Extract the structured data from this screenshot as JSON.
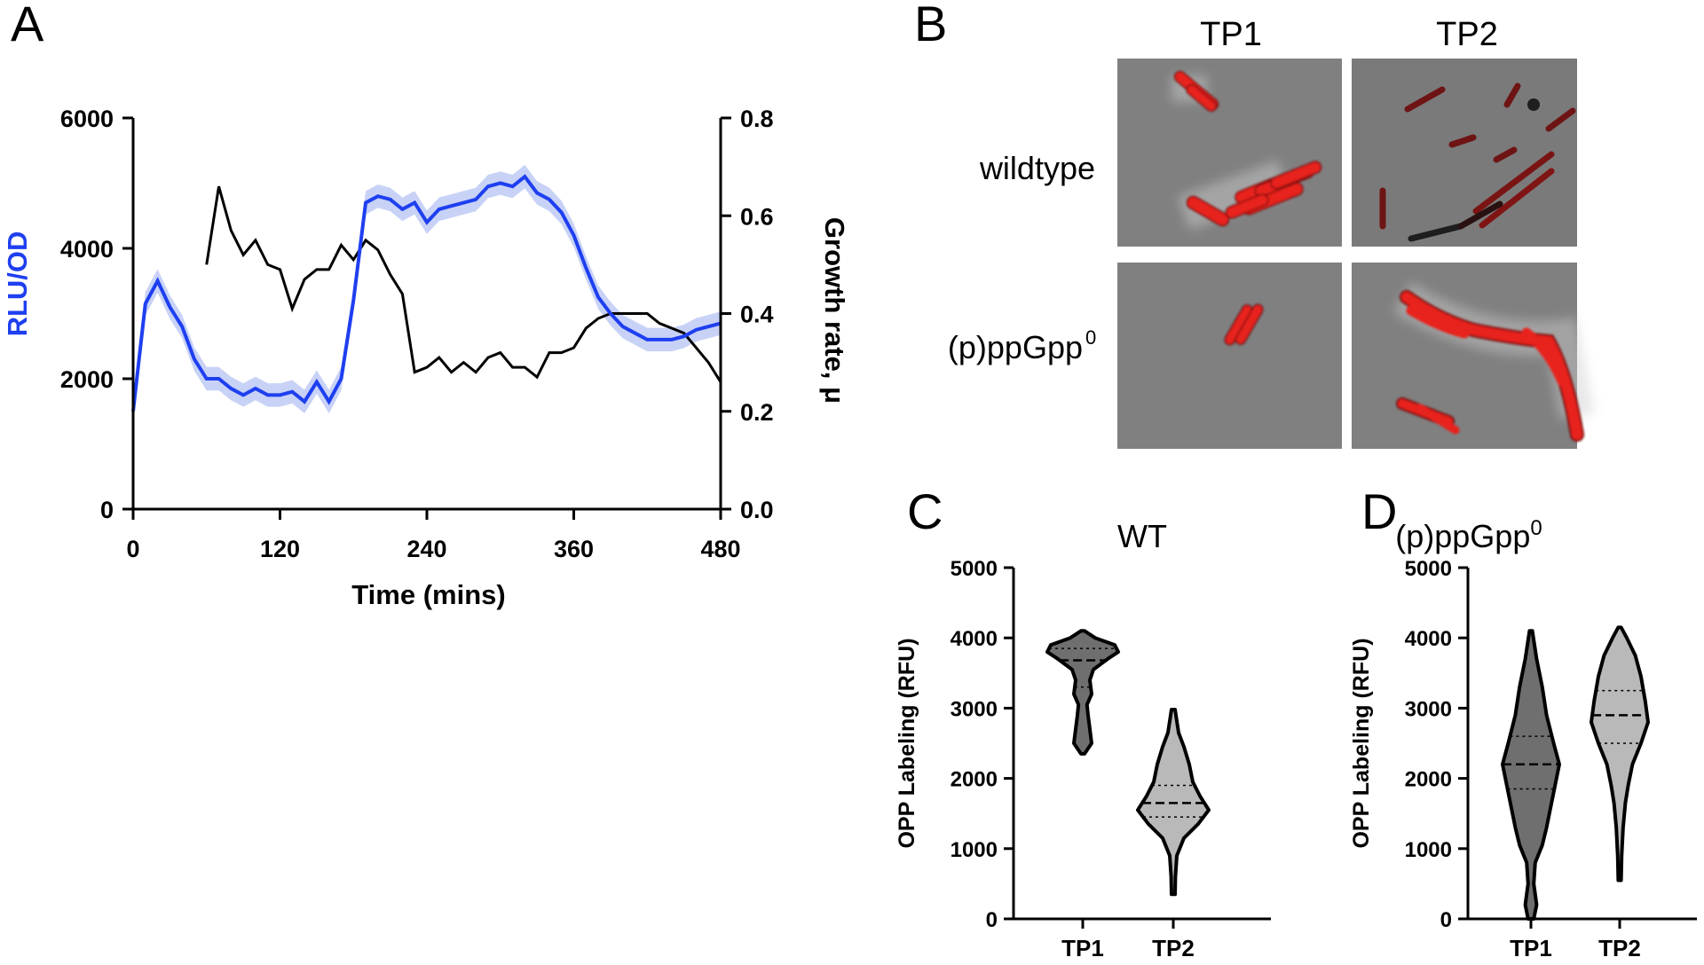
{
  "figure": {
    "panel_letters": [
      "A",
      "B",
      "C",
      "D"
    ],
    "colors": {
      "blue": "#1e3ff0",
      "band": "#c8d2f7",
      "black": "#000000",
      "phase": "#7c7c7c",
      "tp1_fill": "#6f6f6f",
      "tp2_fill": "#b9b9b9",
      "red": "#e8201e"
    }
  },
  "panel_b": {
    "columns": [
      "TP1",
      "TP2"
    ],
    "rows": [
      "wildtype",
      "(p)ppGpp",
      "0"
    ]
  },
  "chart_data": [
    {
      "panel": "A",
      "type": "line",
      "xlabel": "Time (mins)",
      "ylabel": "RLU/OD",
      "y2label": "Growth rate, μ",
      "xlim": [
        0,
        480
      ],
      "ylim": [
        0,
        6000
      ],
      "y2lim": [
        0,
        0.8
      ],
      "xticks": [
        "0",
        "120",
        "240",
        "360",
        "480"
      ],
      "yticks": [
        "0",
        "2000",
        "4000",
        "6000"
      ],
      "y2ticks": [
        "0.0",
        "0.2",
        "0.4",
        "0.6",
        "0.8"
      ],
      "series": [
        {
          "axis": "left",
          "color": "#1e3ff0",
          "x": [
            0,
            10,
            20,
            30,
            40,
            50,
            60,
            70,
            80,
            90,
            100,
            110,
            120,
            130,
            140,
            150,
            160,
            170,
            180,
            190,
            200,
            210,
            220,
            230,
            240,
            250,
            260,
            270,
            280,
            290,
            300,
            310,
            320,
            330,
            340,
            350,
            360,
            370,
            380,
            390,
            400,
            410,
            420,
            430,
            440,
            450,
            460,
            470,
            480
          ],
          "y": [
            1500,
            3150,
            3500,
            3100,
            2800,
            2300,
            2000,
            2000,
            1850,
            1750,
            1850,
            1750,
            1750,
            1800,
            1650,
            1950,
            1650,
            2000,
            3200,
            4700,
            4800,
            4750,
            4600,
            4700,
            4400,
            4600,
            4650,
            4700,
            4750,
            4950,
            5000,
            4950,
            5100,
            4850,
            4750,
            4550,
            4200,
            3700,
            3250,
            3000,
            2800,
            2700,
            2600,
            2600,
            2600,
            2650,
            2750,
            2800,
            2850
          ],
          "err": 180
        },
        {
          "axis": "right",
          "color": "#000000",
          "x": [
            60,
            70,
            80,
            90,
            100,
            110,
            120,
            130,
            140,
            150,
            160,
            170,
            180,
            190,
            200,
            210,
            220,
            230,
            240,
            250,
            260,
            270,
            280,
            290,
            300,
            310,
            320,
            330,
            340,
            350,
            360,
            370,
            380,
            390,
            400,
            410,
            420,
            430,
            440,
            450,
            460,
            470,
            480
          ],
          "y": [
            0.5,
            0.66,
            0.57,
            0.52,
            0.55,
            0.5,
            0.49,
            0.41,
            0.47,
            0.49,
            0.49,
            0.54,
            0.51,
            0.55,
            0.53,
            0.48,
            0.44,
            0.28,
            0.29,
            0.31,
            0.28,
            0.3,
            0.28,
            0.31,
            0.32,
            0.29,
            0.29,
            0.27,
            0.32,
            0.32,
            0.33,
            0.37,
            0.39,
            0.4,
            0.4,
            0.4,
            0.4,
            0.38,
            0.37,
            0.36,
            0.33,
            0.3,
            0.26
          ]
        }
      ]
    },
    {
      "panel": "C",
      "type": "violin",
      "title": "WT",
      "ylabel": "OPP Labeling (RFU)",
      "ylim": [
        0,
        5000
      ],
      "yticks": [
        "0",
        "1000",
        "2000",
        "3000",
        "4000",
        "5000"
      ],
      "categories": [
        "TP1",
        "TP2"
      ],
      "violins": [
        {
          "fill": "#6f6f6f",
          "min": 2350,
          "max": 4100,
          "q1": 3300,
          "median": 3680,
          "q3": 3850,
          "profile": [
            [
              2350,
              0.05
            ],
            [
              2500,
              0.25
            ],
            [
              2700,
              0.2
            ],
            [
              2900,
              0.15
            ],
            [
              3050,
              0.12
            ],
            [
              3200,
              0.25
            ],
            [
              3400,
              0.2
            ],
            [
              3550,
              0.3
            ],
            [
              3700,
              0.7
            ],
            [
              3800,
              1.0
            ],
            [
              3900,
              0.9
            ],
            [
              4000,
              0.35
            ],
            [
              4100,
              0.05
            ]
          ]
        },
        {
          "fill": "#b9b9b9",
          "min": 350,
          "max": 2980,
          "q1": 1450,
          "median": 1650,
          "q3": 1900,
          "profile": [
            [
              350,
              0.05
            ],
            [
              600,
              0.06
            ],
            [
              900,
              0.1
            ],
            [
              1150,
              0.3
            ],
            [
              1350,
              0.7
            ],
            [
              1550,
              1.0
            ],
            [
              1750,
              0.75
            ],
            [
              1950,
              0.55
            ],
            [
              2200,
              0.45
            ],
            [
              2450,
              0.3
            ],
            [
              2650,
              0.15
            ],
            [
              2980,
              0.05
            ]
          ]
        }
      ]
    },
    {
      "panel": "D",
      "type": "violin",
      "title": "(p)ppGpp",
      "title_sup": "0",
      "ylabel": "OPP Labeling (RFU)",
      "ylim": [
        0,
        5000
      ],
      "yticks": [
        "0",
        "1000",
        "2000",
        "3000",
        "4000",
        "5000"
      ],
      "categories": [
        "TP1",
        "TP2"
      ],
      "violins": [
        {
          "fill": "#6f6f6f",
          "min": 0,
          "max": 4100,
          "q1": 1850,
          "median": 2200,
          "q3": 2600,
          "profile": [
            [
              0,
              0.1
            ],
            [
              200,
              0.2
            ],
            [
              500,
              0.1
            ],
            [
              800,
              0.15
            ],
            [
              1050,
              0.4
            ],
            [
              1300,
              0.55
            ],
            [
              1600,
              0.7
            ],
            [
              1900,
              0.85
            ],
            [
              2200,
              1.0
            ],
            [
              2500,
              0.8
            ],
            [
              2900,
              0.55
            ],
            [
              3300,
              0.4
            ],
            [
              3700,
              0.2
            ],
            [
              4100,
              0.05
            ]
          ]
        },
        {
          "fill": "#b9b9b9",
          "min": 550,
          "max": 4150,
          "q1": 2500,
          "median": 2900,
          "q3": 3250,
          "profile": [
            [
              550,
              0.05
            ],
            [
              900,
              0.07
            ],
            [
              1300,
              0.12
            ],
            [
              1650,
              0.2
            ],
            [
              1900,
              0.3
            ],
            [
              2200,
              0.45
            ],
            [
              2500,
              0.75
            ],
            [
              2800,
              1.0
            ],
            [
              3100,
              0.9
            ],
            [
              3450,
              0.75
            ],
            [
              3750,
              0.55
            ],
            [
              4000,
              0.25
            ],
            [
              4150,
              0.05
            ]
          ]
        }
      ]
    }
  ]
}
